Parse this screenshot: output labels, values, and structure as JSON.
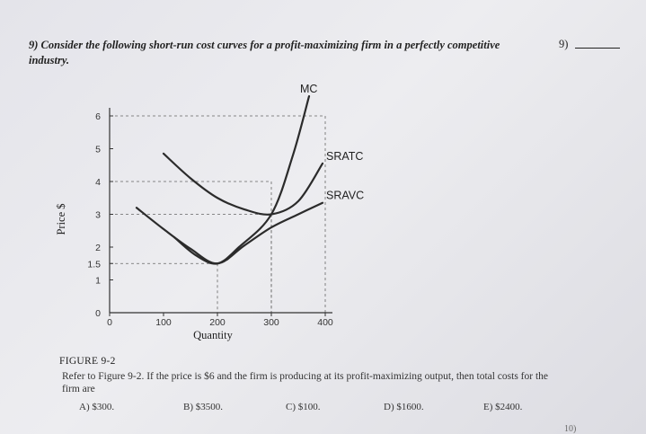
{
  "question": {
    "number_right": "9)",
    "text": "9) Consider the following short-run cost curves for a profit-maximizing firm in a perfectly competitive industry."
  },
  "chart_data": {
    "type": "line",
    "xlabel": "Quantity",
    "ylabel": "Price $",
    "x_ticks": [
      "0",
      "100",
      "200",
      "300",
      "400"
    ],
    "y_ticks": [
      "0",
      "1",
      "1.5",
      "2",
      "3",
      "4",
      "5",
      "6"
    ],
    "xlim": [
      0,
      400
    ],
    "ylim": [
      0,
      6.2
    ],
    "series": [
      {
        "name": "MC",
        "x": [
          120,
          160,
          200,
          240,
          300,
          340,
          370
        ],
        "y": [
          2.3,
          1.75,
          1.5,
          2.0,
          3.0,
          4.8,
          6.6
        ]
      },
      {
        "name": "SRATC",
        "x": [
          100,
          150,
          200,
          250,
          300,
          350,
          395
        ],
        "y": [
          4.85,
          4.1,
          3.5,
          3.15,
          3.0,
          3.4,
          4.55
        ]
      },
      {
        "name": "SRAVC",
        "x": [
          50,
          100,
          150,
          200,
          250,
          300,
          350,
          395
        ],
        "y": [
          3.2,
          2.55,
          1.95,
          1.5,
          2.05,
          2.6,
          3.0,
          3.35
        ]
      }
    ],
    "reference_points": [
      {
        "x": 200,
        "y": 1.5
      },
      {
        "x": 300,
        "y": 3.0
      },
      {
        "x": 300,
        "y": 4.0
      },
      {
        "x": 400,
        "y": 6.0
      }
    ]
  },
  "figure_label": "FIGURE 9-2",
  "problem_text": "Refer to Figure 9-2. If the price is $6 and the firm is producing at its profit-maximizing output, then total costs for the firm are",
  "choices": [
    "A) $300.",
    "B) $3500.",
    "C) $100.",
    "D) $1600.",
    "E) $2400."
  ],
  "next_question_number": "10)",
  "colors": {
    "curve": "#2b2b2b",
    "text": "#222222",
    "background": "#e6e6eb"
  }
}
